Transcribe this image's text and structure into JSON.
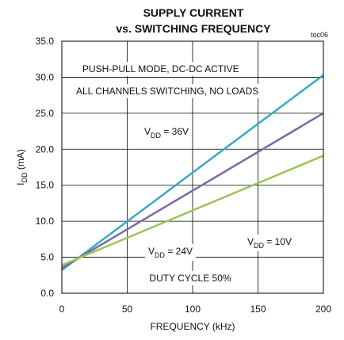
{
  "chart_data": {
    "type": "line",
    "title": [
      "SUPPLY CURRENT",
      "vs. SWITCHING FREQUENCY"
    ],
    "figure_id": "toc06",
    "xlabel": "FREQUENCY (kHz)",
    "ylabel": {
      "text": "I",
      "sub": "DD",
      "after": " (mA)"
    },
    "x": [
      0,
      200
    ],
    "series": [
      {
        "color": "#3aa9c9",
        "values": [
          3.2,
          30.3
        ]
      },
      {
        "color": "#7b68a6",
        "values": [
          3.5,
          25.0
        ]
      },
      {
        "color": "#9bc45a",
        "values": [
          3.9,
          19.1
        ]
      }
    ],
    "xlim": [
      0,
      200
    ],
    "xticks": [
      0,
      50,
      100,
      150,
      200
    ],
    "ylim": [
      0,
      35
    ],
    "yticks": [
      {
        "value": 0,
        "label": "0.0"
      },
      {
        "value": 5,
        "label": "5.0"
      },
      {
        "value": 10,
        "label": "10.0"
      },
      {
        "value": 15,
        "label": "15.0"
      },
      {
        "value": 20,
        "label": "20.0"
      },
      {
        "value": 25,
        "label": "25.0"
      },
      {
        "value": 30,
        "label": "30.0"
      },
      {
        "value": 35,
        "label": "35.0"
      }
    ],
    "grid": true,
    "annotations": [
      {
        "text": "PUSH-PULL MODE, DC-DC ACTIVE"
      },
      {
        "text": "ALL CHANNELS SWITCHING, NO LOADS"
      },
      {
        "text": "V",
        "sub": "DD",
        "after": " = 36V"
      },
      {
        "text": "V",
        "sub": "DD",
        "after": " = 24V"
      },
      {
        "text": "V",
        "sub": "DD",
        "after": " = 10V"
      },
      {
        "text": "DUTY CYCLE 50%"
      }
    ]
  }
}
